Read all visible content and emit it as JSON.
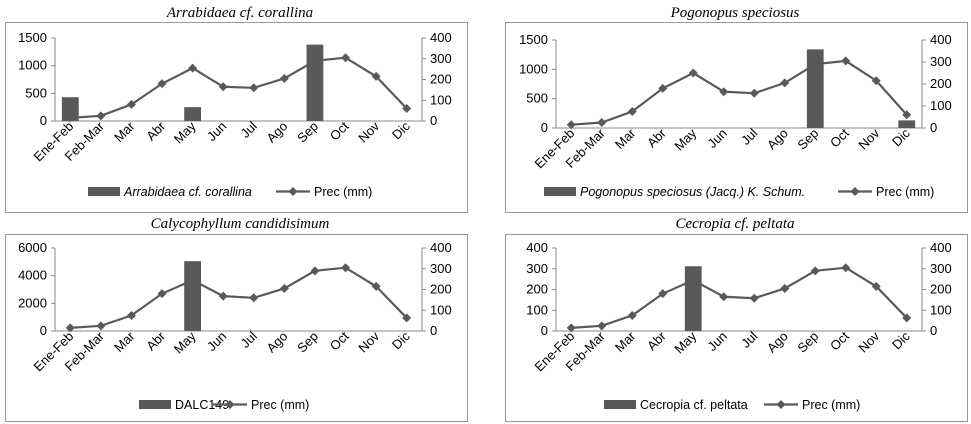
{
  "chart_data": [
    {
      "type": "bar+line",
      "title": "Arrabidaea cf. corallina",
      "categories": [
        "Ene-Feb",
        "Feb-Mar",
        "Mar",
        "Abr",
        "May",
        "Jun",
        "Jul",
        "Ago",
        "Sep",
        "Oct",
        "Nov",
        "Dic"
      ],
      "bar_series": {
        "name": "Arrabidaea cf. corallina",
        "axis": "left",
        "values": [
          430,
          0,
          0,
          0,
          250,
          0,
          0,
          0,
          1380,
          0,
          0,
          0
        ]
      },
      "line_series": {
        "name": "Prec (mm)",
        "axis": "right",
        "values": [
          15,
          25,
          80,
          180,
          255,
          165,
          160,
          205,
          290,
          305,
          215,
          60
        ]
      },
      "ylim_left": [
        0,
        1500
      ],
      "yticks_left": [
        0,
        500,
        1000,
        1500
      ],
      "ylim_right": [
        0,
        400
      ],
      "yticks_right": [
        0,
        100,
        200,
        300,
        400
      ],
      "legend_position": "bottom"
    },
    {
      "type": "bar+line",
      "title": "Pogonopus speciosus",
      "categories": [
        "Ene-Feb",
        "Feb-Mar",
        "Mar",
        "Abr",
        "May",
        "Jun",
        "Jul",
        "Ago",
        "Sep",
        "Oct",
        "Nov",
        "Dic"
      ],
      "bar_series": {
        "name": "Pogonopus speciosus (Jacq.) K. Schum.",
        "axis": "left",
        "values": [
          0,
          0,
          0,
          0,
          0,
          0,
          0,
          0,
          1340,
          0,
          0,
          130
        ]
      },
      "line_series": {
        "name": "Prec (mm)",
        "axis": "right",
        "values": [
          15,
          25,
          75,
          180,
          250,
          165,
          158,
          205,
          290,
          305,
          215,
          60
        ]
      },
      "ylim_left": [
        0,
        1500
      ],
      "yticks_left": [
        0,
        500,
        1000,
        1500
      ],
      "ylim_right": [
        0,
        400
      ],
      "yticks_right": [
        0,
        100,
        200,
        300,
        400
      ],
      "legend_position": "bottom"
    },
    {
      "type": "bar+line",
      "title": "Calycophyllum candidisimum",
      "categories": [
        "Ene-Feb",
        "Feb-Mar",
        "Mar",
        "Abr",
        "May",
        "Jun",
        "Jul",
        "Ago",
        "Sep",
        "Oct",
        "Nov",
        "Dic"
      ],
      "bar_series": {
        "name": "DALC149",
        "axis": "left",
        "values": [
          0,
          0,
          0,
          0,
          5050,
          0,
          0,
          0,
          0,
          0,
          0,
          0
        ]
      },
      "line_series": {
        "name": "Prec (mm)",
        "axis": "right",
        "values": [
          15,
          25,
          75,
          180,
          245,
          168,
          160,
          205,
          290,
          305,
          215,
          63
        ]
      },
      "ylim_left": [
        0,
        6000
      ],
      "yticks_left": [
        0,
        2000,
        4000,
        6000
      ],
      "ylim_right": [
        0,
        400
      ],
      "yticks_right": [
        0,
        100,
        200,
        300,
        400
      ],
      "legend_position": "bottom"
    },
    {
      "type": "bar+line",
      "title": "Cecropia cf. peltata",
      "categories": [
        "Ene-Feb",
        "Feb-Mar",
        "Mar",
        "Abr",
        "May",
        "Jun",
        "Jul",
        "Ago",
        "Sep",
        "Oct",
        "Nov",
        "Dic"
      ],
      "bar_series": {
        "name": "Cecropia cf. peltata",
        "axis": "left",
        "values": [
          0,
          0,
          0,
          0,
          312,
          0,
          0,
          0,
          0,
          0,
          0,
          0
        ]
      },
      "line_series": {
        "name": "Prec (mm)",
        "axis": "right",
        "values": [
          15,
          25,
          75,
          180,
          245,
          165,
          158,
          205,
          290,
          305,
          215,
          63
        ]
      },
      "ylim_left": [
        0,
        400
      ],
      "yticks_left": [
        0,
        100,
        200,
        300,
        400
      ],
      "ylim_right": [
        0,
        400
      ],
      "yticks_right": [
        0,
        100,
        200,
        300,
        400
      ],
      "legend_position": "bottom"
    }
  ],
  "colors": {
    "bar": "#595959",
    "line": "#595959"
  },
  "titles": {
    "p0": "Arrabidaea cf. corallina",
    "p1": "Pogonopus speciosus",
    "p2": "Calycophyllum candidisimum",
    "p3": "Cecropia cf. peltata"
  }
}
